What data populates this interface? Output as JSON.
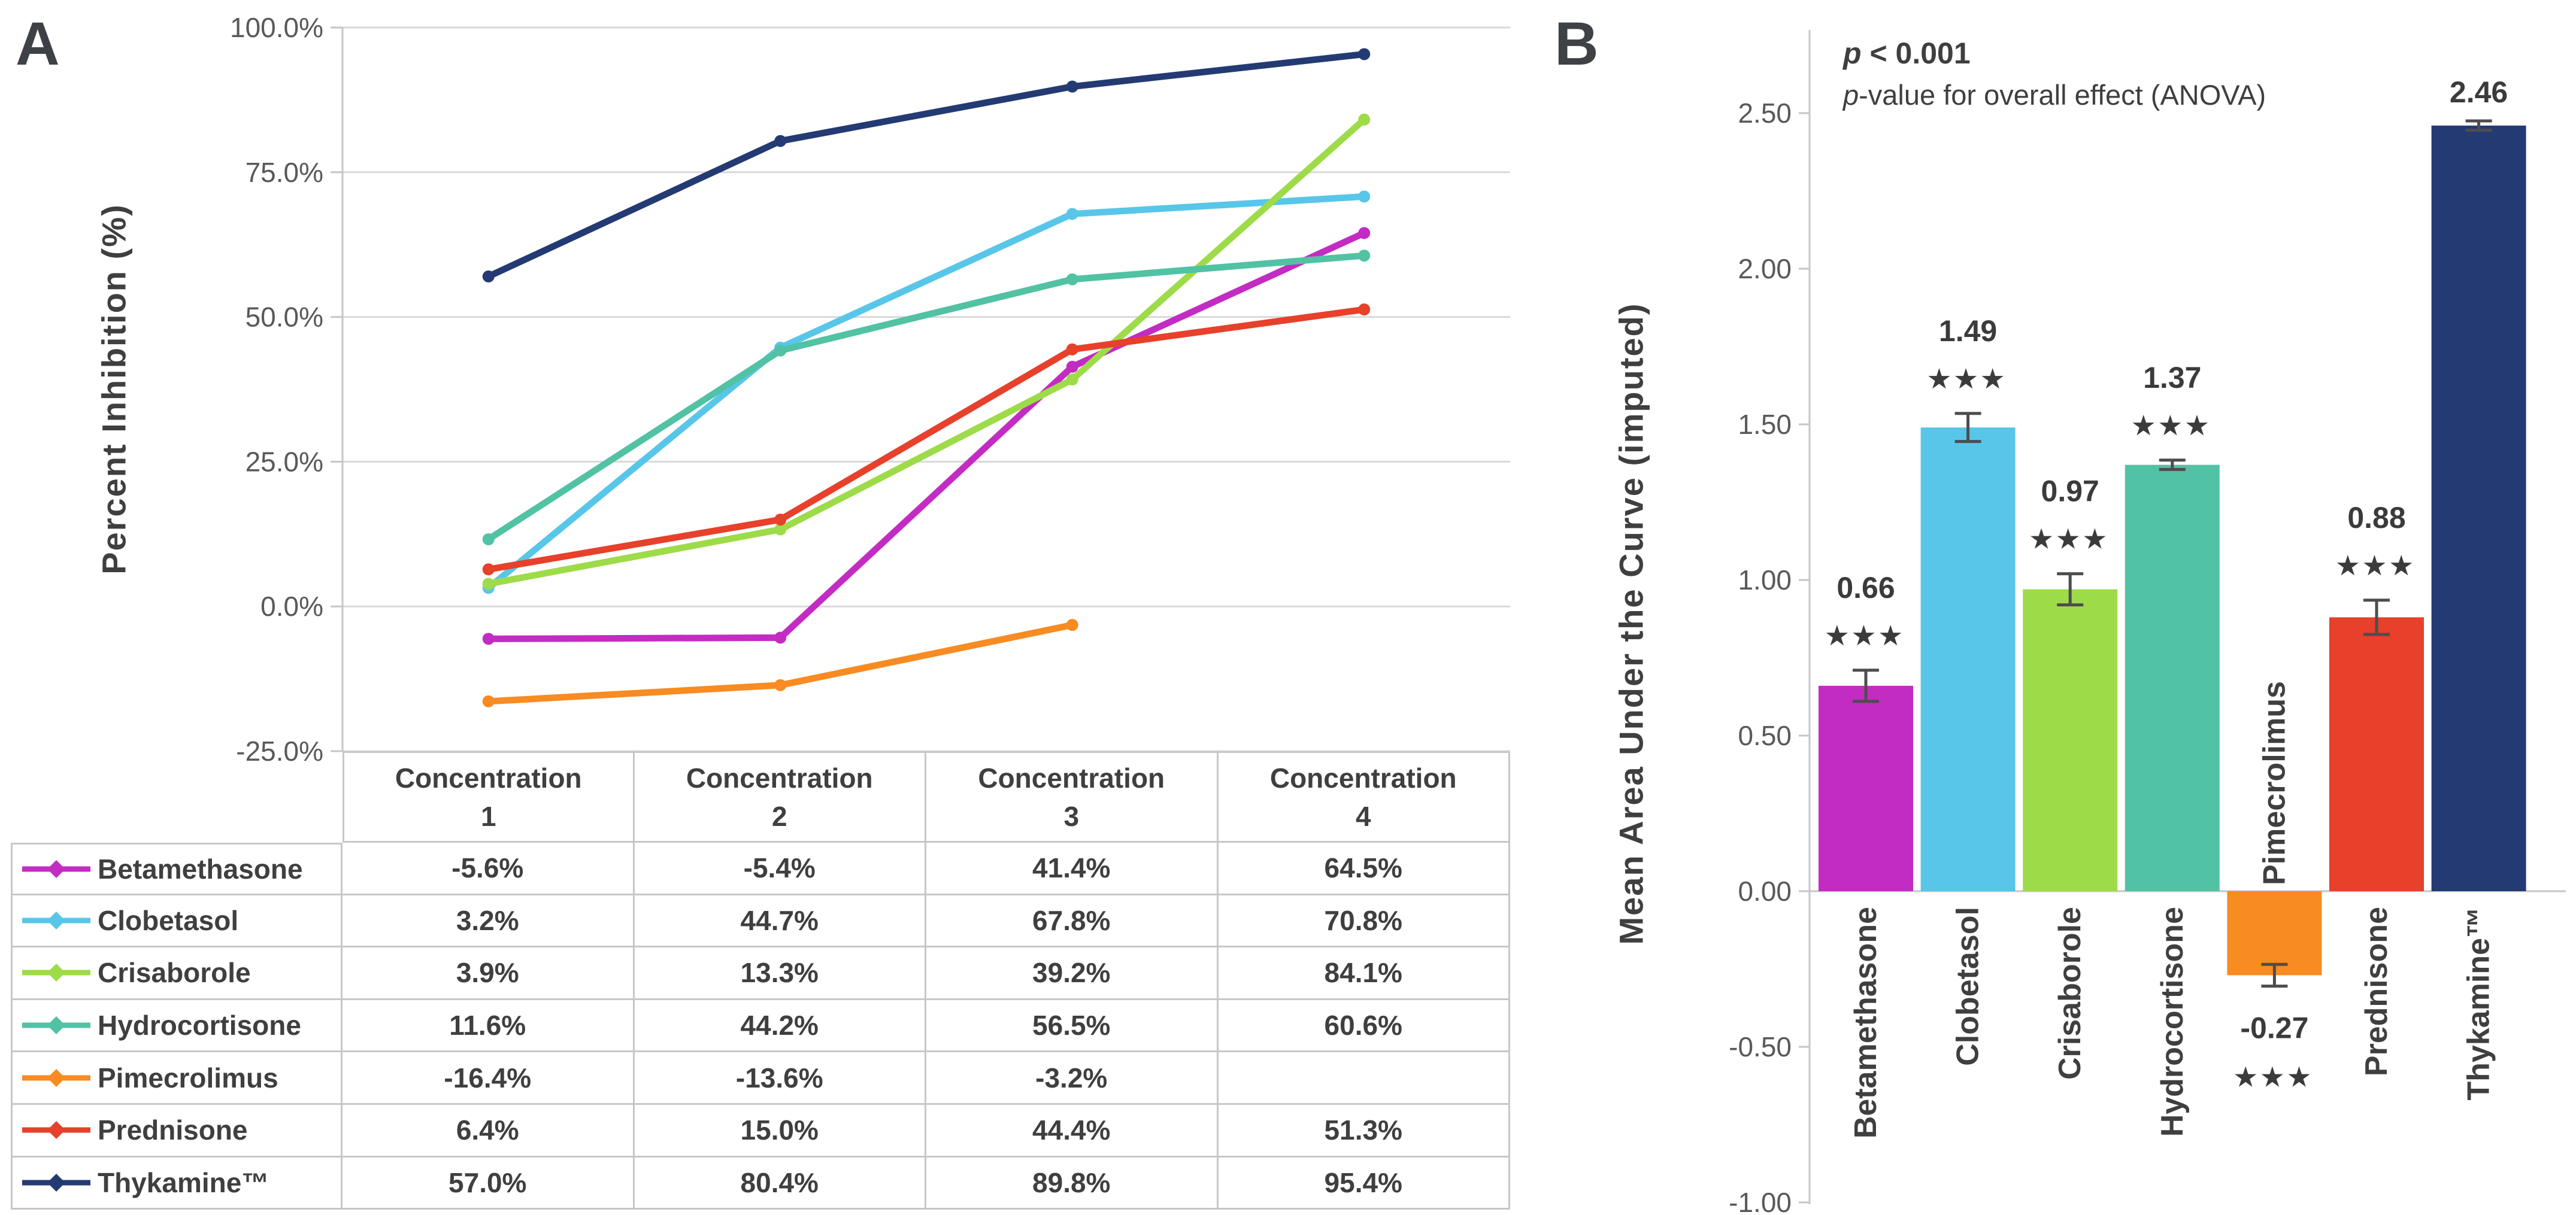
{
  "colors": {
    "grid": "#d9d9d9",
    "axis": "#c6c6c6",
    "table_border": "#c7c7c7",
    "text_dark": "#3f3f3f",
    "text_gray": "#595959",
    "error_bar": "#4d4d4d"
  },
  "panel_a": {
    "label": "A",
    "y_axis_title": "Percent Inhibition (%)",
    "table_headers": [
      {
        "line1": "Concentration",
        "line2": "1"
      },
      {
        "line1": "Concentration",
        "line2": "2"
      },
      {
        "line1": "Concentration",
        "line2": "3"
      },
      {
        "line1": "Concentration",
        "line2": "4"
      }
    ]
  },
  "panel_b": {
    "label": "B",
    "y_axis_title": "Mean Area Under the Curve (imputed)",
    "annotation": {
      "p": "p",
      "line1_rest": " < 0.001",
      "line2_rest": "-value for overall effect (ANOVA)"
    }
  },
  "chart_data": [
    {
      "type": "line",
      "title": "",
      "xlabel": "",
      "ylabel": "Percent Inhibition (%)",
      "categories": [
        "Concentration 1",
        "Concentration 2",
        "Concentration 3",
        "Concentration 4"
      ],
      "ylim": [
        -25,
        100
      ],
      "ytick_step": 25,
      "grid": "horizontal",
      "legend_position": "table-left",
      "yticks": [
        {
          "value": 100,
          "label": "100.0%"
        },
        {
          "value": 75,
          "label": "75.0%"
        },
        {
          "value": 50,
          "label": "50.0%"
        },
        {
          "value": 25,
          "label": "25.0%"
        },
        {
          "value": 0,
          "label": "0.0%"
        },
        {
          "value": -25,
          "label": "-25.0%"
        }
      ],
      "series": [
        {
          "name": "Betamethasone",
          "color": "#c32cc3",
          "values": [
            -5.6,
            -5.4,
            41.4,
            64.5
          ],
          "display": [
            "-5.6%",
            "-5.4%",
            "41.4%",
            "64.5%"
          ]
        },
        {
          "name": "Clobetasol",
          "color": "#58c6e9",
          "values": [
            3.2,
            44.7,
            67.8,
            70.8
          ],
          "display": [
            "3.2%",
            "44.7%",
            "67.8%",
            "70.8%"
          ]
        },
        {
          "name": "Crisaborole",
          "color": "#9edb49",
          "values": [
            3.9,
            13.3,
            39.2,
            84.1
          ],
          "display": [
            "3.9%",
            "13.3%",
            "39.2%",
            "84.1%"
          ]
        },
        {
          "name": "Hydrocortisone",
          "color": "#51c2a4",
          "values": [
            11.6,
            44.2,
            56.5,
            60.6
          ],
          "display": [
            "11.6%",
            "44.2%",
            "56.5%",
            "60.6%"
          ]
        },
        {
          "name": "Pimecrolimus",
          "color": "#f88b21",
          "values": [
            -16.4,
            -13.6,
            -3.2,
            null
          ],
          "display": [
            "-16.4%",
            "-13.6%",
            "-3.2%",
            ""
          ]
        },
        {
          "name": "Prednisone",
          "color": "#e7402b",
          "values": [
            6.4,
            15.0,
            44.4,
            51.3
          ],
          "display": [
            "6.4%",
            "15.0%",
            "44.4%",
            "51.3%"
          ]
        },
        {
          "name": "Thykamine™",
          "color": "#243a73",
          "values": [
            57.0,
            80.4,
            89.8,
            95.4
          ],
          "display": [
            "57.0%",
            "80.4%",
            "89.8%",
            "95.4%"
          ]
        }
      ]
    },
    {
      "type": "bar",
      "title": "",
      "xlabel": "",
      "ylabel": "Mean Area Under the Curve (imputed)",
      "categories": [
        "Betamethasone",
        "Clobetasol",
        "Crisaborole",
        "Hydrocortisone",
        "Pimecrolimus",
        "Prednisone",
        "Thykamine™"
      ],
      "values": [
        0.66,
        1.49,
        0.97,
        1.37,
        -0.27,
        0.88,
        2.46
      ],
      "errors": [
        0.05,
        0.045,
        0.05,
        0.015,
        0.035,
        0.055,
        0.015
      ],
      "value_labels": [
        "0.66",
        "1.49",
        "0.97",
        "1.37",
        "-0.27",
        "0.88",
        "2.46"
      ],
      "significance": [
        "***",
        "***",
        "***",
        "***",
        "***",
        "***",
        ""
      ],
      "colors": [
        "#c32cc3",
        "#58c6e9",
        "#9edb49",
        "#51c2a4",
        "#f88b21",
        "#e7402b",
        "#243a73"
      ],
      "ylim": [
        -1.0,
        2.5
      ],
      "ytick_step": 0.5,
      "grid": "off",
      "yticks": [
        {
          "value": 2.5,
          "label": "2.50"
        },
        {
          "value": 2.0,
          "label": "2.00"
        },
        {
          "value": 1.5,
          "label": "1.50"
        },
        {
          "value": 1.0,
          "label": "1.00"
        },
        {
          "value": 0.5,
          "label": "0.50"
        },
        {
          "value": 0.0,
          "label": "0.00"
        },
        {
          "value": -0.5,
          "label": "-0.50"
        },
        {
          "value": -1.0,
          "label": "-1.00"
        }
      ],
      "annotation_line1": "p < 0.001",
      "annotation_line2": "p-value for overall effect (ANOVA)"
    }
  ]
}
